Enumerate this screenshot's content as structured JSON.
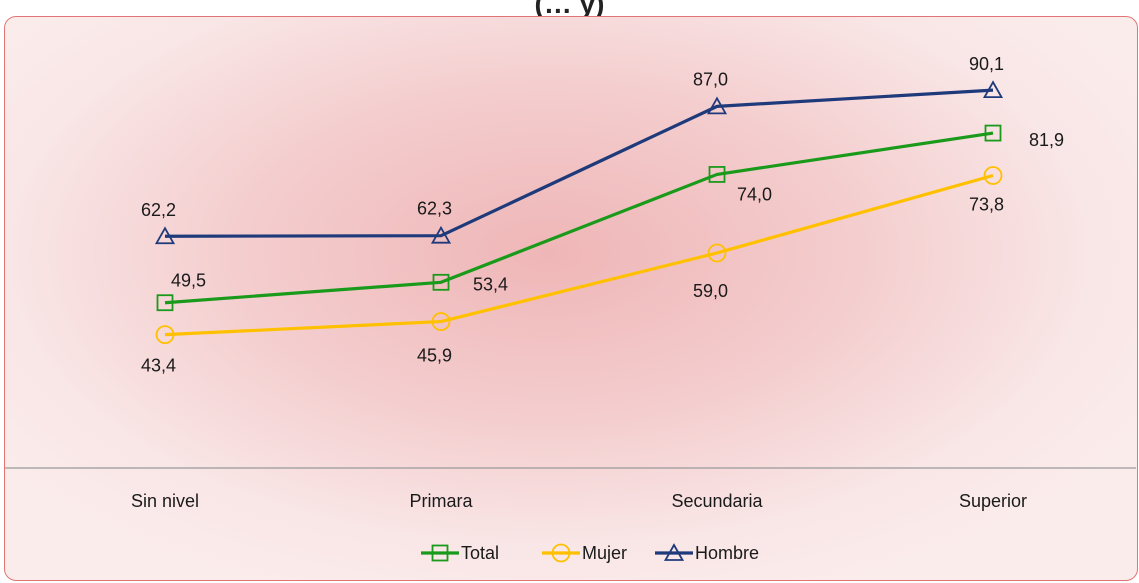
{
  "title_fragment": "(… y)",
  "chart_data": {
    "type": "line",
    "categories": [
      "Sin nivel",
      "Primara",
      "Secundaria",
      "Superior"
    ],
    "series": [
      {
        "name": "Total",
        "color": "#1a9a1a",
        "marker": "square",
        "values": [
          49.5,
          53.4,
          74.0,
          81.9
        ],
        "labels": [
          "49,5",
          "53,4",
          "74,0",
          "81,9"
        ]
      },
      {
        "name": "Mujer",
        "color": "#ffc000",
        "marker": "circle",
        "values": [
          43.4,
          45.9,
          59.0,
          73.8
        ],
        "labels": [
          "43,4",
          "45,9",
          "59,0",
          "73,8"
        ]
      },
      {
        "name": "Hombre",
        "color": "#1f3a7a",
        "marker": "triangle",
        "values": [
          62.2,
          62.3,
          87.0,
          90.1
        ],
        "labels": [
          "62,2",
          "62,3",
          "87,0",
          "90,1"
        ]
      }
    ],
    "legend_position": "bottom",
    "grid": false
  }
}
